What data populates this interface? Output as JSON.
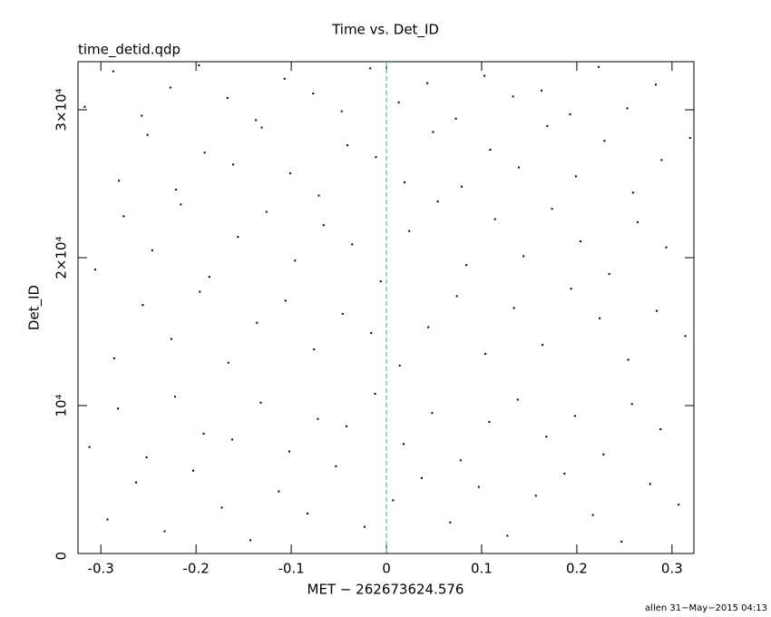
{
  "chart_data": {
    "type": "scatter",
    "title": "Time vs. Det_ID",
    "subtitle": "time_detid.qdp",
    "xlabel": "MET − 262673624.576",
    "ylabel": "Det_ID",
    "footer": "allen 31−May−2015 04:13",
    "xlim": [
      -0.324,
      0.323
    ],
    "ylim": [
      0,
      33250
    ],
    "xticks": [
      -0.3,
      -0.2,
      -0.1,
      0,
      0.1,
      0.2,
      0.3
    ],
    "yticks": [
      0,
      {
        "value": 10000,
        "label": "10⁴"
      },
      {
        "value": 20000,
        "label": "2×10⁴"
      },
      {
        "value": 30000,
        "label": "3×10⁴"
      }
    ],
    "vline": 0,
    "vline_color": "#2aa7b8",
    "color": "#000000",
    "x": [
      -0.293,
      -0.263,
      -0.233,
      -0.203,
      -0.173,
      -0.143,
      -0.113,
      -0.083,
      -0.053,
      -0.023,
      0.007,
      0.037,
      0.067,
      0.097,
      0.127,
      0.157,
      0.187,
      0.217,
      0.247,
      0.277,
      0.307,
      -0.312,
      -0.282,
      -0.252,
      -0.222,
      -0.192,
      -0.162,
      -0.132,
      -0.102,
      -0.072,
      -0.042,
      -0.012,
      0.018,
      0.048,
      0.078,
      0.108,
      0.138,
      0.168,
      0.198,
      0.228,
      0.258,
      0.288,
      -0.286,
      -0.256,
      -0.226,
      -0.196,
      -0.166,
      -0.136,
      -0.106,
      -0.076,
      -0.046,
      -0.016,
      0.014,
      0.044,
      0.074,
      0.104,
      0.134,
      0.164,
      0.194,
      0.224,
      0.254,
      0.284,
      0.314,
      -0.306,
      -0.276,
      -0.246,
      -0.216,
      -0.186,
      -0.156,
      -0.126,
      -0.096,
      -0.066,
      -0.036,
      -0.006,
      0.024,
      0.054,
      0.084,
      0.114,
      0.144,
      0.174,
      0.204,
      0.234,
      0.264,
      0.294,
      -0.281,
      -0.251,
      -0.221,
      -0.191,
      -0.161,
      -0.131,
      -0.101,
      -0.071,
      -0.041,
      -0.011,
      0.019,
      0.049,
      0.079,
      0.109,
      0.139,
      0.169,
      0.199,
      0.229,
      0.259,
      0.289,
      0.319,
      -0.317,
      -0.287,
      -0.257,
      -0.227,
      -0.197,
      -0.167,
      -0.137,
      -0.107,
      -0.077,
      -0.047,
      -0.017,
      0.013,
      0.043,
      0.073,
      0.103,
      0.133,
      0.163,
      0.193,
      0.223,
      0.253,
      0.283
    ],
    "values": [
      2300,
      4800,
      1500,
      5600,
      3100,
      900,
      4200,
      2700,
      5900,
      1800,
      3600,
      5100,
      2100,
      4500,
      1200,
      3900,
      5400,
      2600,
      800,
      4700,
      3300,
      7200,
      9800,
      6500,
      10600,
      8100,
      7700,
      10200,
      6900,
      9100,
      8600,
      10800,
      7400,
      9500,
      6300,
      8900,
      10400,
      7900,
      9300,
      6700,
      10100,
      8400,
      13200,
      16800,
      14500,
      17700,
      12900,
      15600,
      17100,
      13800,
      16200,
      14900,
      12700,
      15300,
      17400,
      13500,
      16600,
      14100,
      17900,
      15900,
      13100,
      16400,
      14700,
      19200,
      22800,
      20500,
      23600,
      18700,
      21400,
      23100,
      19800,
      22200,
      20900,
      18400,
      21800,
      23800,
      19500,
      22600,
      20100,
      23300,
      21100,
      18900,
      22400,
      20700,
      25200,
      28300,
      24600,
      27100,
      26300,
      28800,
      25700,
      24200,
      27600,
      26800,
      25100,
      28500,
      24800,
      27300,
      26100,
      28900,
      25500,
      27900,
      24400,
      26600,
      28100,
      30200,
      32600,
      29600,
      31500,
      33000,
      30800,
      29300,
      32100,
      31100,
      29900,
      32800,
      30500,
      31800,
      29400,
      32300,
      30900,
      31300,
      29700,
      32900,
      30100,
      31700
    ]
  }
}
